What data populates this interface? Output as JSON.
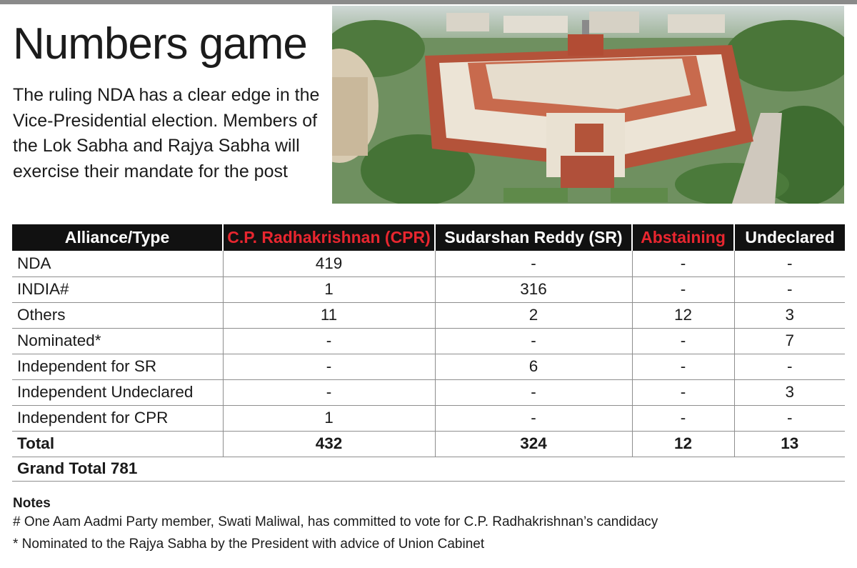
{
  "header": {
    "title": "Numbers game",
    "intro": "The ruling NDA has a clear edge in the Vice-Presidential election. Members of the Lok Sabha and Rajya Sabha will exercise their mandate for the post"
  },
  "photo": {
    "icon": "parliament-building-photo"
  },
  "colors": {
    "header_bg": "#111111",
    "header_red": "#e8262f",
    "header_white": "#ffffff"
  },
  "chart_data": {
    "type": "table",
    "columns": [
      "Alliance/Type",
      "C.P. Radhakrishnan (CPR)",
      "Sudarshan Reddy (SR)",
      "Abstaining",
      "Undeclared"
    ],
    "rows": [
      [
        "NDA",
        "419",
        "-",
        "-",
        "-"
      ],
      [
        "INDIA#",
        "1",
        "316",
        "-",
        "-"
      ],
      [
        "Others",
        "11",
        "2",
        "12",
        "3"
      ],
      [
        "Nominated*",
        "-",
        "-",
        "-",
        "7"
      ],
      [
        "Independent for SR",
        "-",
        "6",
        "-",
        "-"
      ],
      [
        "Independent Undeclared",
        "-",
        "-",
        "-",
        "3"
      ],
      [
        "Independent for CPR",
        "1",
        "-",
        "-",
        "-"
      ]
    ],
    "total": [
      "Total",
      "432",
      "324",
      "12",
      "13"
    ],
    "grand_total": "Grand Total 781"
  },
  "notes": {
    "title": "Notes",
    "items": [
      "# One Aam Aadmi Party member, Swati Maliwal, has committed to vote for C.P. Radhakrishnan’s candidacy",
      "* Nominated to the Rajya Sabha by the President with advice of Union Cabinet"
    ]
  }
}
